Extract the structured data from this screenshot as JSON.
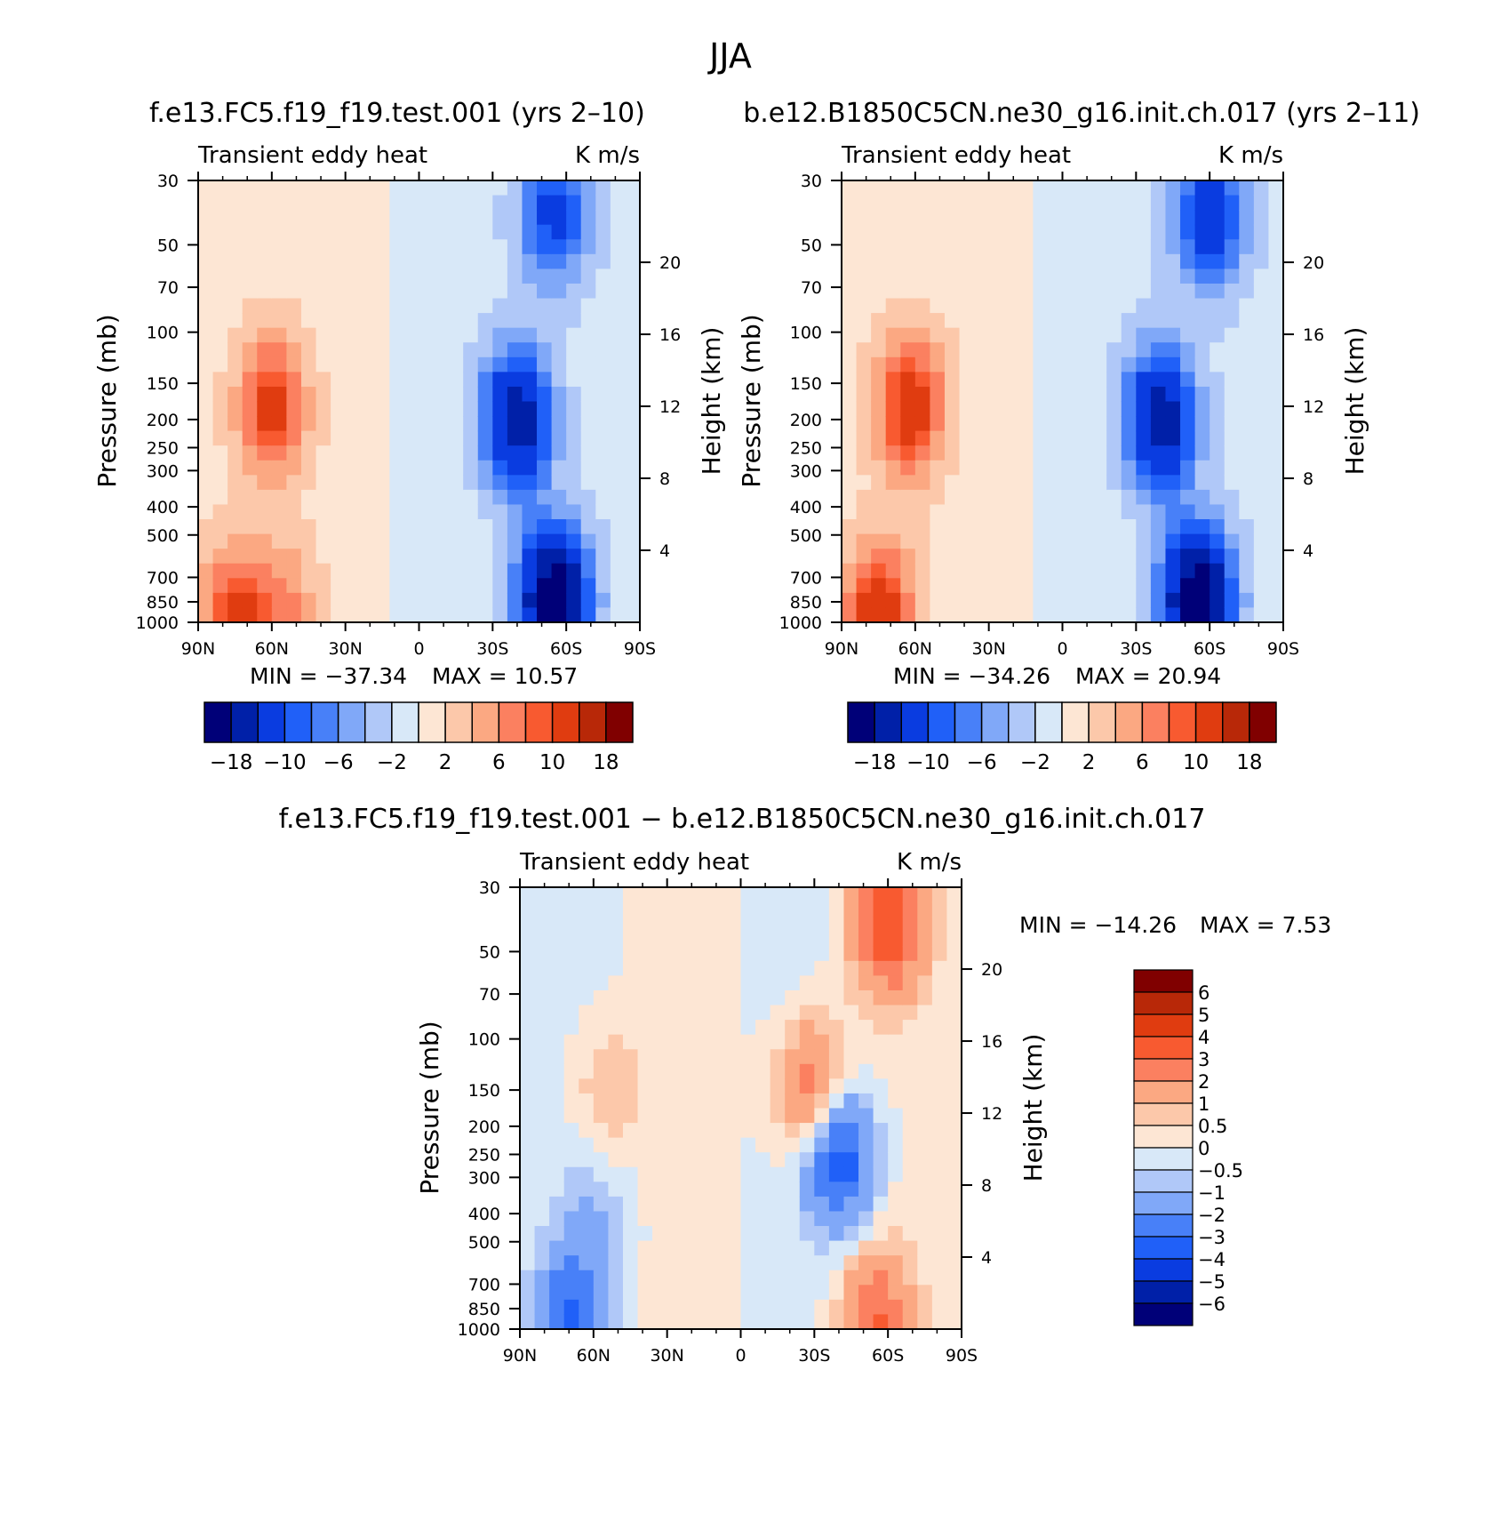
{
  "figure_title": "JJA",
  "chart_data": [
    {
      "type": "heatmap",
      "panel": "model-1",
      "title": "f.e13.FC5.f19_f19.test.001 (yrs 2–10)",
      "left_label": "Transient eddy heat",
      "right_label": "K m/s",
      "ylabel": "Pressure (mb)",
      "ylabel_right": "Height (km)",
      "x_ticks": [
        "90N",
        "60N",
        "30N",
        "0",
        "30S",
        "60S",
        "90S"
      ],
      "y_ticks": [
        "30",
        "50",
        "70",
        "100",
        "150",
        "200",
        "250",
        "300",
        "400",
        "500",
        "700",
        "850",
        "1000"
      ],
      "y_ticks_right": [
        "4",
        "8",
        "12",
        "16",
        "20"
      ],
      "xlim": [
        90,
        -90
      ],
      "ylim": [
        1000,
        30
      ],
      "min_text": "MIN =  −37.34",
      "max_text": "MAX =    10.57",
      "min": -37.34,
      "max": 10.57,
      "colorbar_labels": [
        "−18",
        "−10",
        "−6",
        "−2",
        "2",
        "6",
        "10",
        "18"
      ],
      "features": [
        {
          "lat": 60,
          "p": 180,
          "value": 10
        },
        {
          "lat": 75,
          "p": 950,
          "value": 9
        },
        {
          "lat": 55,
          "p": 900,
          "value": 5
        },
        {
          "lat": -40,
          "p": 200,
          "value": -16
        },
        {
          "lat": -55,
          "p": 850,
          "value": -22
        },
        {
          "lat": -55,
          "p": 40,
          "value": -10
        }
      ]
    },
    {
      "type": "heatmap",
      "panel": "model-2",
      "title": "b.e12.B1850C5CN.ne30_g16.init.ch.017 (yrs 2–11)",
      "left_label": "Transient eddy heat",
      "right_label": "K m/s",
      "ylabel": "Pressure (mb)",
      "ylabel_right": "Height (km)",
      "x_ticks": [
        "90N",
        "60N",
        "30N",
        "0",
        "30S",
        "60S",
        "90S"
      ],
      "y_ticks": [
        "30",
        "50",
        "70",
        "100",
        "150",
        "200",
        "250",
        "300",
        "400",
        "500",
        "700",
        "850",
        "1000"
      ],
      "y_ticks_right": [
        "4",
        "8",
        "12",
        "16",
        "20"
      ],
      "xlim": [
        90,
        -90
      ],
      "ylim": [
        1000,
        30
      ],
      "min_text": "MIN =  −34.26",
      "max_text": "MAX =    20.94",
      "min": -34.26,
      "max": 20.94,
      "colorbar_labels": [
        "−18",
        "−10",
        "−6",
        "−2",
        "2",
        "6",
        "10",
        "18"
      ],
      "features": [
        {
          "lat": 62,
          "p": 180,
          "value": 11
        },
        {
          "lat": 75,
          "p": 950,
          "value": 12
        },
        {
          "lat": -40,
          "p": 200,
          "value": -16
        },
        {
          "lat": -55,
          "p": 850,
          "value": -22
        },
        {
          "lat": -60,
          "p": 40,
          "value": -12
        }
      ]
    },
    {
      "type": "heatmap",
      "panel": "difference",
      "title": "f.e13.FC5.f19_f19.test.001 − b.e12.B1850C5CN.ne30_g16.init.ch.017",
      "left_label": "Transient eddy heat",
      "right_label": "K m/s",
      "ylabel": "Pressure (mb)",
      "ylabel_right": "Height (km)",
      "x_ticks": [
        "90N",
        "60N",
        "30N",
        "0",
        "30S",
        "60S",
        "90S"
      ],
      "y_ticks": [
        "30",
        "50",
        "70",
        "100",
        "150",
        "200",
        "250",
        "300",
        "400",
        "500",
        "700",
        "850",
        "1000"
      ],
      "y_ticks_right": [
        "4",
        "8",
        "12",
        "16",
        "20"
      ],
      "xlim": [
        90,
        -90
      ],
      "ylim": [
        1000,
        30
      ],
      "min_text": "MIN =  −14.26",
      "max_text": "MAX =     7.53",
      "min": -14.26,
      "max": 7.53,
      "colorbar_labels": [
        "6",
        "5",
        "4",
        "3",
        "2",
        "1",
        "0.5",
        "0",
        "−0.5",
        "−1",
        "−2",
        "−3",
        "−4",
        "−5",
        "−6"
      ],
      "features": [
        {
          "lat": -60,
          "p": 40,
          "value": 4
        },
        {
          "lat": -30,
          "p": 150,
          "value": 3
        },
        {
          "lat": -40,
          "p": 250,
          "value": -4
        },
        {
          "lat": 55,
          "p": 150,
          "value": 1
        },
        {
          "lat": 60,
          "p": 450,
          "value": -1
        },
        {
          "lat": 70,
          "p": 970,
          "value": -3
        },
        {
          "lat": -55,
          "p": 950,
          "value": 3
        }
      ]
    }
  ],
  "colors": {
    "div16": [
      "#000078",
      "#0020a8",
      "#0a3ce0",
      "#2060f8",
      "#4880f8",
      "#80a8f8",
      "#b0c8f8",
      "#d8e8f8",
      "#fde6d4",
      "#fcc8aa",
      "#fba882",
      "#fb8060",
      "#f85a30",
      "#e03c10",
      "#b82808",
      "#800000"
    ]
  }
}
